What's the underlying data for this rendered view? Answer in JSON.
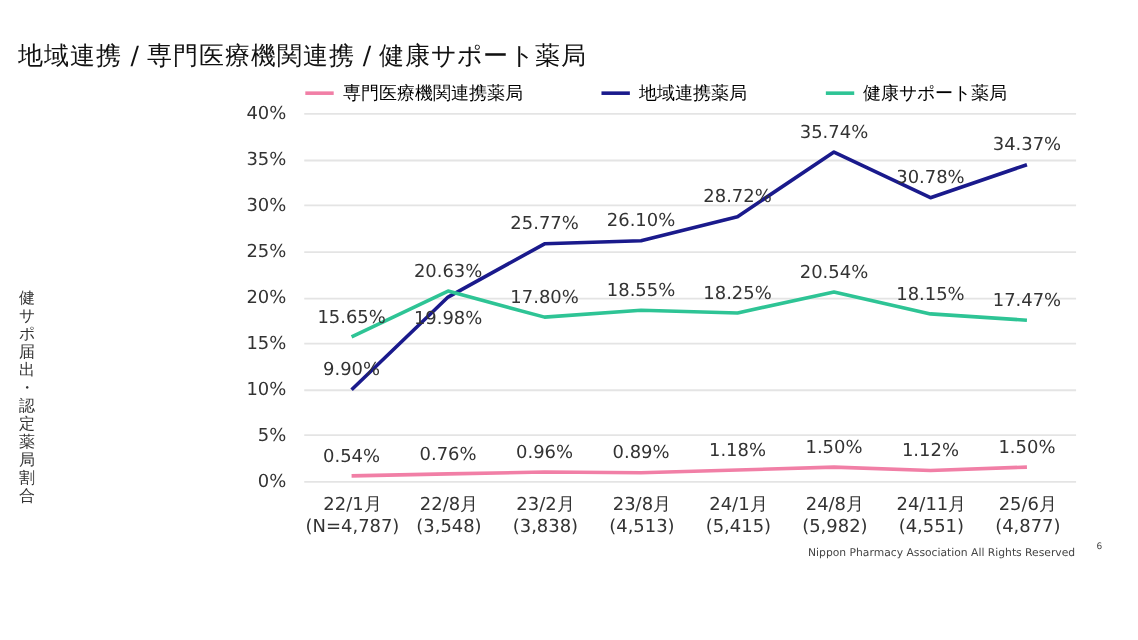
{
  "chart_data": {
    "type": "line",
    "title": "地域連携 / 専門医療機関連携 / 健康サポート薬局",
    "ylabel": "健サポ届出・認定薬局割合",
    "categories": [
      "22/1月\n(N=4,787)",
      "22/8月\n(3,548)",
      "23/2月\n(3,838)",
      "23/8月\n(4,513)",
      "24/1月\n(5,415)",
      "24/8月\n(5,982)",
      "24/11月\n(4,551)",
      "25/6月\n(4,877)"
    ],
    "series": [
      {
        "name": "専門医療機関連携薬局",
        "color": "#f17fa6",
        "values": [
          0.54,
          0.76,
          0.96,
          0.89,
          1.18,
          1.5,
          1.12,
          1.5
        ],
        "value_labels": [
          "0.54%",
          "0.76%",
          "0.96%",
          "0.89%",
          "1.18%",
          "1.50%",
          "1.12%",
          "1.50%"
        ]
      },
      {
        "name": "地域連携薬局",
        "color": "#1a1a8c",
        "values": [
          9.9,
          19.98,
          25.77,
          26.1,
          28.72,
          35.74,
          30.78,
          34.37
        ],
        "value_labels": [
          "9.90%",
          "19.98%",
          "25.77%",
          "26.10%",
          "28.72%",
          "35.74%",
          "30.78%",
          "34.37%"
        ]
      },
      {
        "name": "健康サポート薬局",
        "color": "#2ec495",
        "values": [
          15.65,
          20.63,
          17.8,
          18.55,
          18.25,
          20.54,
          18.15,
          17.47
        ],
        "value_labels": [
          "15.65%",
          "20.63%",
          "17.80%",
          "18.55%",
          "18.25%",
          "20.54%",
          "18.15%",
          "17.47%"
        ]
      }
    ],
    "ylim": [
      0,
      40
    ],
    "yticks": [
      {
        "value": 0,
        "label": "0%"
      },
      {
        "value": 5,
        "label": "5%"
      },
      {
        "value": 10,
        "label": "10%"
      },
      {
        "value": 15,
        "label": "15%"
      },
      {
        "value": 20,
        "label": "20%"
      },
      {
        "value": 25,
        "label": "25%"
      },
      {
        "value": 30,
        "label": "30%"
      },
      {
        "value": 35,
        "label": "35%"
      },
      {
        "value": 40,
        "label": "40%"
      }
    ],
    "grid": "y",
    "legend": "top",
    "marker": "none",
    "line_style": "solid",
    "annotations": [
      "Nippon Pharmacy Association All Rights Reserved",
      "6"
    ]
  }
}
